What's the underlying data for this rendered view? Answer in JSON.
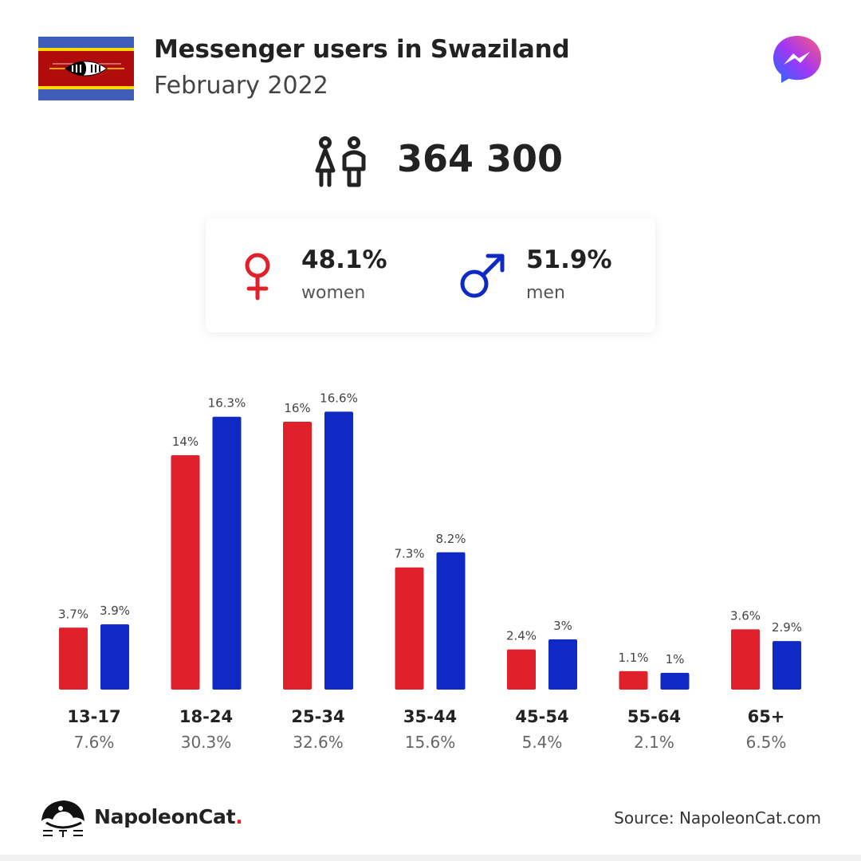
{
  "header": {
    "title": "Messenger users in Swaziland",
    "subtitle": "February 2022"
  },
  "summary": {
    "total": "364 300",
    "women_pct": "48.1%",
    "women_label": "women",
    "men_pct": "51.9%",
    "men_label": "men"
  },
  "icons": {
    "flag": "swaziland-flag-icon",
    "app": "messenger-logo-icon",
    "people": "people-icon",
    "female": "female-symbol-icon",
    "male": "male-symbol-icon",
    "brand": "napoleoncat-logo-icon"
  },
  "colors": {
    "women": "#e0212c",
    "men": "#0f2ac4"
  },
  "chart_data": {
    "type": "bar",
    "categories": [
      "13-17",
      "18-24",
      "25-34",
      "35-44",
      "45-54",
      "55-64",
      "65+"
    ],
    "series": [
      {
        "name": "women",
        "values": [
          3.7,
          14,
          16,
          7.3,
          2.4,
          1.1,
          3.6
        ],
        "labels": [
          "3.7%",
          "14%",
          "16%",
          "7.3%",
          "2.4%",
          "1.1%",
          "3.6%"
        ]
      },
      {
        "name": "men",
        "values": [
          3.9,
          16.3,
          16.6,
          8.2,
          3,
          1,
          2.9
        ],
        "labels": [
          "3.9%",
          "16.3%",
          "16.6%",
          "8.2%",
          "3%",
          "1%",
          "2.9%"
        ]
      }
    ],
    "category_totals": [
      "7.6%",
      "30.3%",
      "32.6%",
      "15.6%",
      "5.4%",
      "2.1%",
      "6.5%"
    ]
  },
  "footer": {
    "brand_name": "NapoleonCat",
    "brand_dot": ".",
    "source": "Source: NapoleonCat.com"
  }
}
